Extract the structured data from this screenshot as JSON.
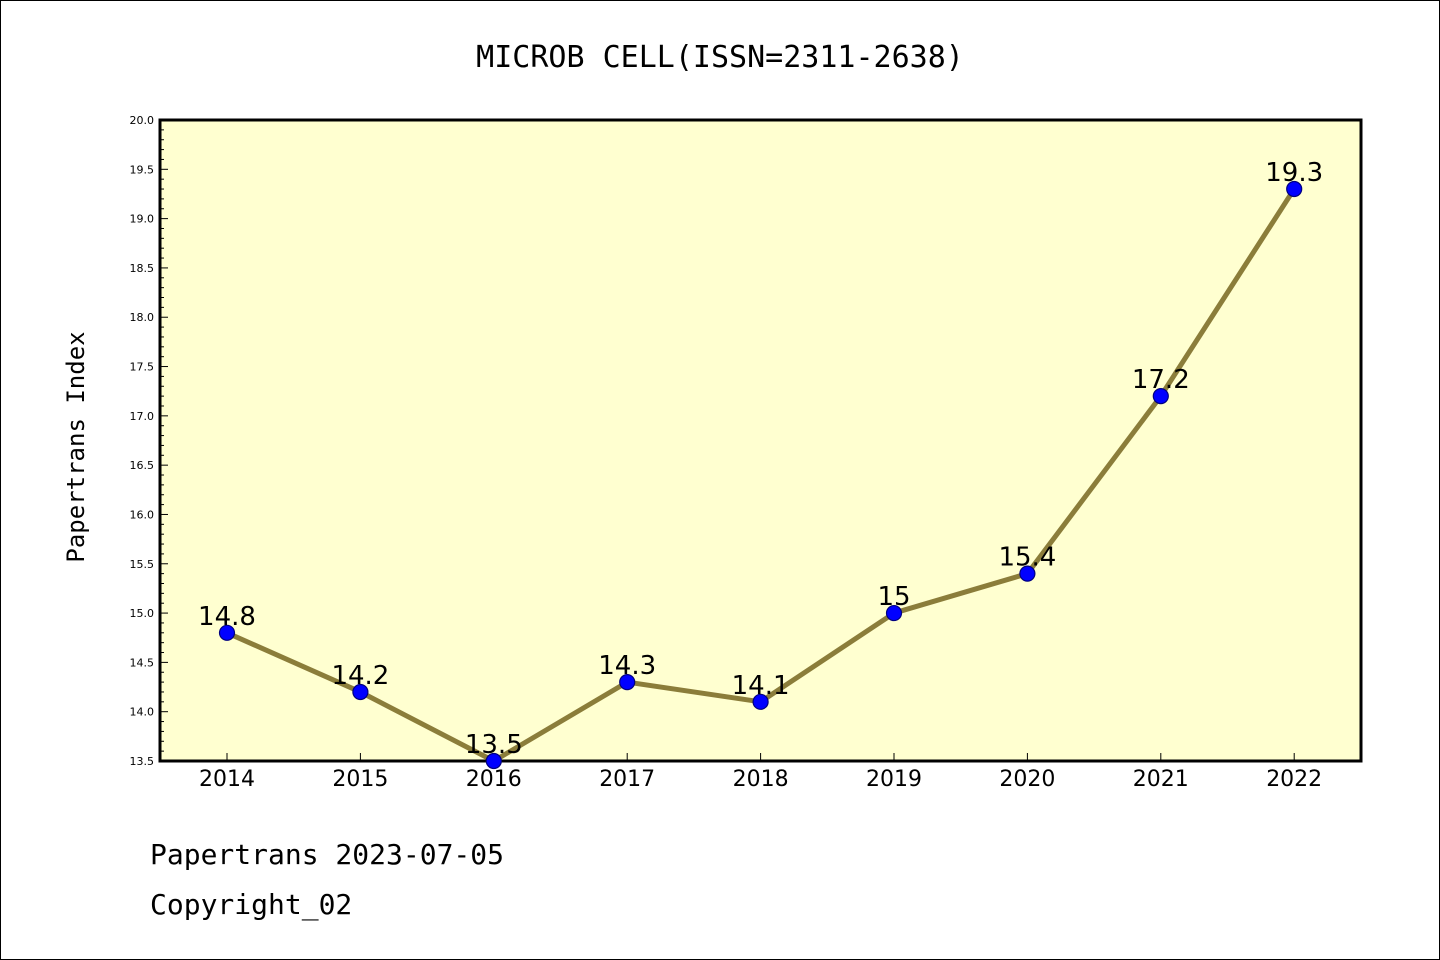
{
  "chart_data": {
    "type": "line",
    "title": "MICROB CELL(ISSN=2311-2638)",
    "ylabel": "Papertrans Index",
    "xlabel": "",
    "x": [
      "2014",
      "2015",
      "2016",
      "2017",
      "2018",
      "2019",
      "2020",
      "2021",
      "2022"
    ],
    "values": [
      14.8,
      14.2,
      13.5,
      14.3,
      14.1,
      15.0,
      15.4,
      17.2,
      19.3
    ],
    "data_labels": [
      "14.8",
      "14.2",
      "13.5",
      "14.3",
      "14.1",
      "15",
      "15.4",
      "17.2",
      "19.3"
    ],
    "ylim": [
      13.5,
      20.0
    ],
    "yticks": [
      "13.5",
      "14.0",
      "14.5",
      "15.0",
      "15.5",
      "16.0",
      "16.5",
      "17.0",
      "17.5",
      "18.0",
      "18.5",
      "19.0",
      "19.5",
      "20.0"
    ],
    "grid": false,
    "colors": {
      "plot_background": "#ffffd0",
      "line": "#8b7d3a",
      "marker_fill": "#0000ff",
      "marker_edge": "#000080"
    }
  },
  "footer": {
    "line1": "Papertrans 2023-07-05",
    "line2": "Copyright_02"
  }
}
